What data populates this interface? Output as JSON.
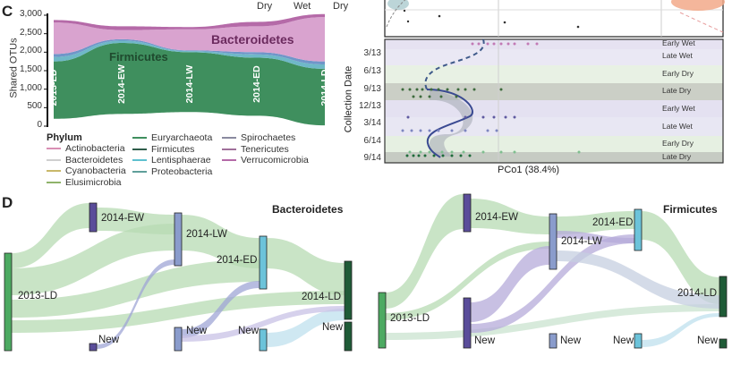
{
  "panel_c": {
    "letter": "C",
    "season_header": [
      "Dry",
      "Wet",
      "Dry"
    ],
    "chart_data": {
      "type": "area",
      "title": "",
      "xlabel": "",
      "ylabel": "Shared OTUs",
      "ylim": [
        0,
        3000
      ],
      "yticks": [
        "0",
        "500",
        "1,000",
        "1,500",
        "2,000",
        "2,500",
        "3,000"
      ],
      "categories": [
        "2013-LD",
        "2014-EW",
        "2014-LW",
        "2014-ED",
        "2014-LD"
      ],
      "baseline": [
        200,
        330,
        380,
        280,
        20
      ],
      "series": [
        {
          "name": "Firmicutes",
          "values": [
            1550,
            1920,
            1620,
            1570,
            1530
          ],
          "color": "#3f8f5e"
        },
        {
          "name": "Lentisphaerae",
          "values": [
            120,
            60,
            30,
            90,
            120
          ],
          "color": "#6fb8c8"
        },
        {
          "name": "Proteobacteria",
          "values": [
            80,
            40,
            20,
            60,
            80
          ],
          "color": "#6f96c9"
        },
        {
          "name": "Bacteroidetes",
          "values": [
            850,
            250,
            570,
            700,
            1200
          ],
          "color": "#d9a3cf"
        },
        {
          "name": "Verrucomicrobia",
          "values": [
            70,
            100,
            60,
            120,
            80
          ],
          "color": "#b56aa8"
        }
      ],
      "annotations": [
        "Bacteroidetes",
        "Firmicutes"
      ],
      "legend": {
        "title": "Phylum",
        "placement": "bottom",
        "items": [
          {
            "label": "Actinobacteria",
            "color": "#d98fb4"
          },
          {
            "label": "Bacteroidetes",
            "color": "#cfcfcf"
          },
          {
            "label": "Cyanobacteria",
            "color": "#c9b86a"
          },
          {
            "label": "Elusimicrobia",
            "color": "#8fb36a"
          },
          {
            "label": "Euryarchaeota",
            "color": "#3f8f5e"
          },
          {
            "label": "Firmicutes",
            "color": "#2f5d4a"
          },
          {
            "label": "Lentisphaerae",
            "color": "#5fc0cf"
          },
          {
            "label": "Proteobacteria",
            "color": "#5f9f9a"
          },
          {
            "label": "Spirochaetes",
            "color": "#8a8aa0"
          },
          {
            "label": "Tenericutes",
            "color": "#a0709a"
          },
          {
            "label": "Verrucomicrobia",
            "color": "#b56aa8"
          }
        ]
      }
    },
    "pcoa": {
      "xlabel": "PCo1 (38.4%)",
      "ylabel": "Collection Date",
      "yticks": [
        "3/13",
        "6/13",
        "9/13",
        "12/13",
        "3/14",
        "6/14",
        "9/14"
      ],
      "season_bands": [
        "Early Wet",
        "Late Wet",
        "Early Dry",
        "Late Dry",
        "Early Wet",
        "Late Wet",
        "Early Dry",
        "Late Dry"
      ]
    }
  },
  "panel_d": {
    "letter": "D",
    "diagrams": [
      {
        "title": "Bacteroidetes",
        "nodes": [
          "2013-LD",
          "2014-EW",
          "2014-LW",
          "2014-ED",
          "2014-LD"
        ],
        "new_label": "New"
      },
      {
        "title": "Firmicutes",
        "nodes": [
          "2013-LD",
          "2014-EW",
          "2014-LW",
          "2014-ED",
          "2014-LD"
        ],
        "new_label": "New"
      }
    ],
    "node_colors": {
      "2013-LD": "#4daa62",
      "2014-EW": "#5a4d9a",
      "2014-LW": "#8a9ccc",
      "2014-ED": "#6cc3da",
      "2014-LD": "#1f5b37"
    }
  }
}
